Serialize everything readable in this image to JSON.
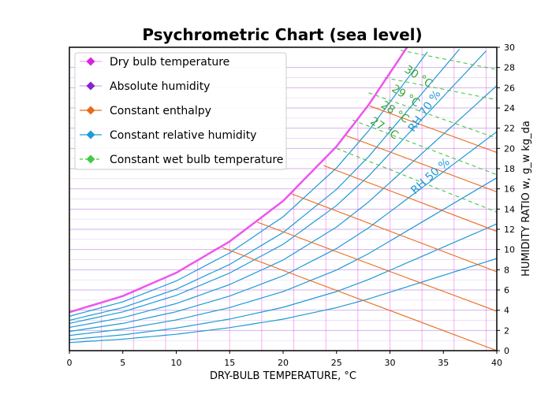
{
  "chart_data": {
    "type": "line",
    "title": "Psychrometric Chart (sea level)",
    "xlabel": "DRY-BULB TEMPERATURE, °C",
    "ylabel": "HUMIDITY RATIO w, g_w kg_da",
    "xlim": [
      0,
      40
    ],
    "ylim": [
      0,
      30
    ],
    "x_ticks": [
      0,
      5,
      10,
      15,
      20,
      25,
      30,
      35,
      40
    ],
    "y_ticks": [
      0,
      2,
      4,
      6,
      8,
      10,
      12,
      14,
      16,
      18,
      20,
      22,
      24,
      26,
      28,
      30
    ],
    "y_axis_side": "right",
    "grid": true,
    "legend_position": "top-left",
    "legend": [
      {
        "label": "Dry bulb temperature",
        "color": "#dd22dd"
      },
      {
        "label": "Absolute humidity",
        "color": "#8822cc"
      },
      {
        "label": "Constant enthalpy",
        "color": "#e86a1a"
      },
      {
        "label": "Constant relative humidity",
        "color": "#1f9ad6"
      },
      {
        "label": "Constant wet bulb temperature",
        "color": "#44c944"
      }
    ],
    "saturation_curve": {
      "color": "#ee55ee",
      "x": [
        0,
        5,
        10,
        15,
        20,
        25,
        28,
        31.6
      ],
      "y": [
        3.8,
        5.4,
        7.7,
        10.8,
        14.8,
        20.2,
        24.3,
        30
      ]
    },
    "relative_humidity_curves": [
      {
        "rh": 90,
        "y_at_0": 3.4
      },
      {
        "rh": 80,
        "y_at_0": 3.0
      },
      {
        "rh": 70,
        "y_at_0": 2.7
      },
      {
        "rh": 60,
        "y_at_0": 2.3
      },
      {
        "rh": 50,
        "y_at_0": 1.9
      },
      {
        "rh": 40,
        "y_at_0": 1.5
      },
      {
        "rh": 30,
        "y_at_0": 1.1
      },
      {
        "rh": 20,
        "y_at_0": 0.8
      }
    ],
    "enthalpy_lines": [
      {
        "x": [
          14.3,
          40
        ],
        "y": [
          10.2,
          0
        ]
      },
      {
        "x": [
          17.6,
          40
        ],
        "y": [
          12.7,
          3.9
        ]
      },
      {
        "x": [
          20.8,
          40
        ],
        "y": [
          15.5,
          7.8
        ]
      },
      {
        "x": [
          23.8,
          40
        ],
        "y": [
          18.3,
          11.8
        ]
      },
      {
        "x": [
          25.8,
          40
        ],
        "y": [
          21.3,
          15.7
        ]
      },
      {
        "x": [
          28.1,
          40
        ],
        "y": [
          24.2,
          19.6
        ]
      }
    ],
    "wet_bulb_lines": [
      {
        "x": [
          25.0,
          40
        ],
        "y": [
          20.0,
          13.7
        ]
      },
      {
        "x": [
          26.5,
          40
        ],
        "y": [
          22.8,
          17.4
        ]
      },
      {
        "x": [
          28.0,
          40
        ],
        "y": [
          25.5,
          21.0
        ]
      },
      {
        "x": [
          29.5,
          40
        ],
        "y": [
          27.0,
          24.8
        ]
      },
      {
        "x": [
          31.0,
          40
        ],
        "y": [
          29.7,
          27.8
        ]
      }
    ],
    "annotations": [
      {
        "text": "30 °C",
        "color": "#3aa83a",
        "x": 32.5,
        "y": 26.8,
        "angle": 33
      },
      {
        "text": "29 °C",
        "color": "#3aa83a",
        "x": 31.3,
        "y": 24.9,
        "angle": 33
      },
      {
        "text": "28 °C",
        "color": "#3aa83a",
        "x": 30.3,
        "y": 23.3,
        "angle": 33
      },
      {
        "text": "27 °C",
        "color": "#3aa83a",
        "x": 29.3,
        "y": 21.7,
        "angle": 33
      },
      {
        "text": "RH 70 %",
        "color": "#1f9ad6",
        "x": 33.5,
        "y": 23.5,
        "angle": -55
      },
      {
        "text": "RH 50 %",
        "color": "#1f9ad6",
        "x": 34.0,
        "y": 17.0,
        "angle": -42
      }
    ]
  }
}
